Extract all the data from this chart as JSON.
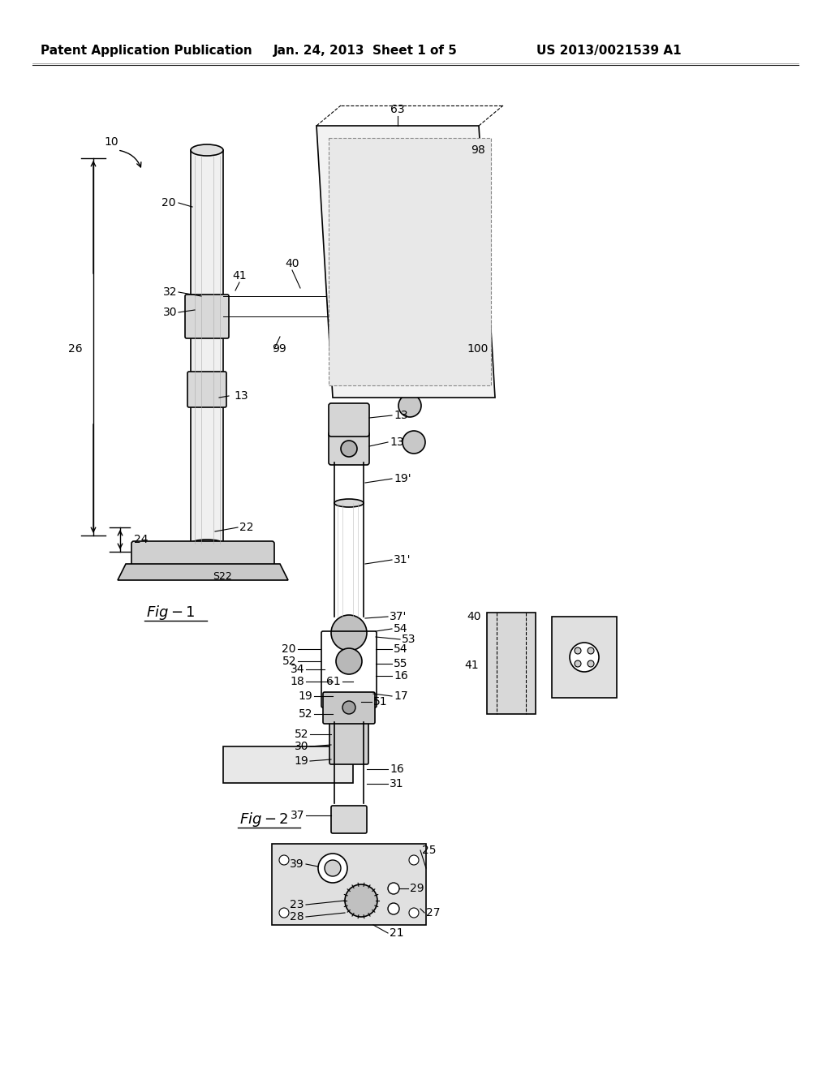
{
  "bg_color": "#ffffff",
  "header_text1": "Patent Application Publication",
  "header_text2": "Jan. 24, 2013  Sheet 1 of 5",
  "header_text3": "US 2013/0021539 A1",
  "fig1_label": "Fig-1",
  "fig2_label": "Fig-2",
  "title_fontsize": 11,
  "label_fontsize": 10
}
